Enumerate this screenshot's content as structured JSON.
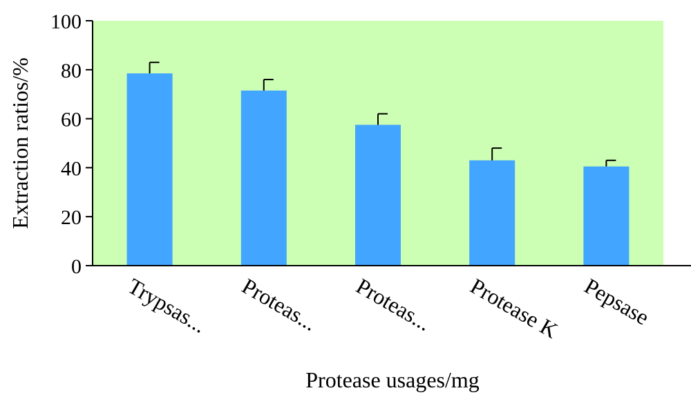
{
  "chart_data": {
    "type": "bar",
    "categories": [
      "Trypsas...",
      "Proteas...",
      "Proteas...",
      "Protease K",
      "Pepsase"
    ],
    "values": [
      78.5,
      71.5,
      57.5,
      43.0,
      40.5
    ],
    "errors": [
      4.5,
      4.5,
      4.5,
      5.0,
      2.5
    ],
    "title": "",
    "xlabel": "Protease usages/mg",
    "ylabel": "Extraction ratios/%",
    "ylim": [
      0,
      100
    ],
    "yticks": [
      {
        "value": 0,
        "label": "0"
      },
      {
        "value": 20,
        "label": "20"
      },
      {
        "value": 40,
        "label": "40"
      },
      {
        "value": 60,
        "label": "60"
      },
      {
        "value": 80,
        "label": "80"
      },
      {
        "value": 100,
        "label": "100"
      }
    ],
    "grid": false,
    "legend": "none",
    "colors": {
      "bar": "#42a5ff",
      "plot_background": "#ccffb3",
      "axis": "#000000",
      "error_bar": "#000000"
    }
  }
}
